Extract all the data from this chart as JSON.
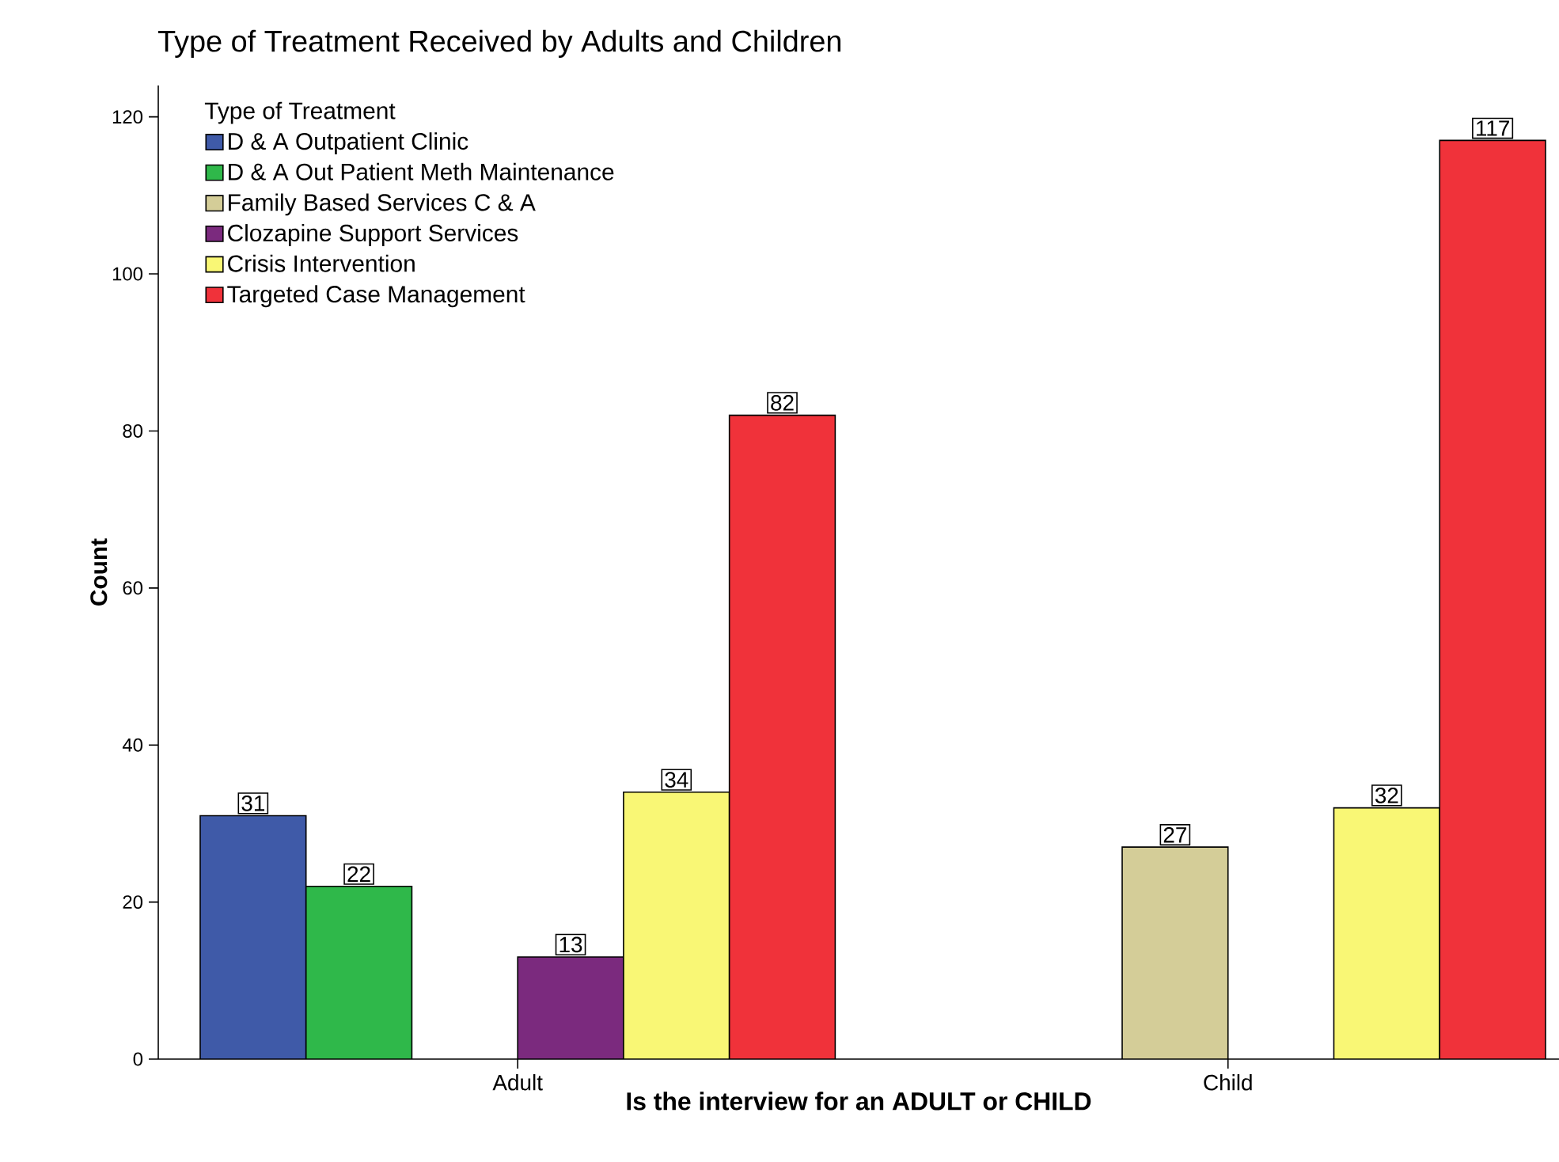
{
  "chart_data": {
    "type": "bar",
    "title": "Type of Treatment Received by Adults and Children",
    "xlabel": "Is the interview for an ADULT or CHILD",
    "ylabel": "Count",
    "legend_title": "Type of Treatment",
    "categories": [
      "Adult",
      "Child"
    ],
    "series": [
      {
        "name": "D & A Outpatient Clinic",
        "color": "#3f5aa8",
        "values": [
          31,
          null
        ]
      },
      {
        "name": "D & A Out Patient Meth Maintenance",
        "color": "#2fb84a",
        "values": [
          22,
          null
        ]
      },
      {
        "name": "Family Based Services C & A",
        "color": "#d4cd98",
        "values": [
          null,
          27
        ]
      },
      {
        "name": "Clozapine Support Services",
        "color": "#7b2a7e",
        "values": [
          13,
          null
        ]
      },
      {
        "name": "Crisis Intervention",
        "color": "#f9f775",
        "values": [
          34,
          32
        ]
      },
      {
        "name": "Targeted Case Management",
        "color": "#f0323a",
        "values": [
          82,
          117
        ]
      }
    ],
    "ylim": [
      0,
      124
    ],
    "yticks": [
      0,
      20,
      40,
      60,
      80,
      100,
      120
    ],
    "data_labels": true,
    "legend": "top left",
    "grid": false
  }
}
